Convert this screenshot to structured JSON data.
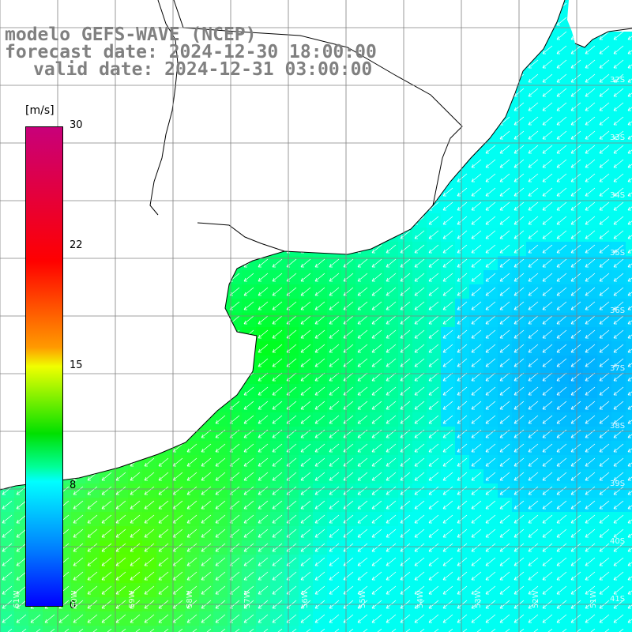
{
  "title": {
    "line1": "modelo GEFS-WAVE (NCEP)",
    "line2": "forecast date: 2024-12-30 18:00:00",
    "line3": "valid date: 2024-12-31 03:00:00"
  },
  "colorbar": {
    "unit": "[m/s]",
    "ticks": [
      "30",
      "22",
      "15",
      "8",
      "0"
    ],
    "colors": [
      "#c8007a",
      "#ff0000",
      "#ff9a00",
      "#f0ff00",
      "#00e000",
      "#00ffff",
      "#0080ff",
      "#0000ff"
    ]
  },
  "map": {
    "latitude_labels": [
      "32S",
      "33S",
      "34S",
      "35S",
      "36S",
      "37S",
      "38S",
      "39S",
      "40S",
      "41S"
    ],
    "longitude_labels": [
      "61W",
      "60W",
      "59W",
      "58W",
      "57W",
      "56W",
      "55W",
      "54W",
      "53W",
      "52W",
      "51W"
    ],
    "colors": {
      "land": "#ffffff",
      "coast": "#000000",
      "grid": "#808080",
      "arrows": "#ffffff"
    },
    "field": "wind speed and direction"
  }
}
